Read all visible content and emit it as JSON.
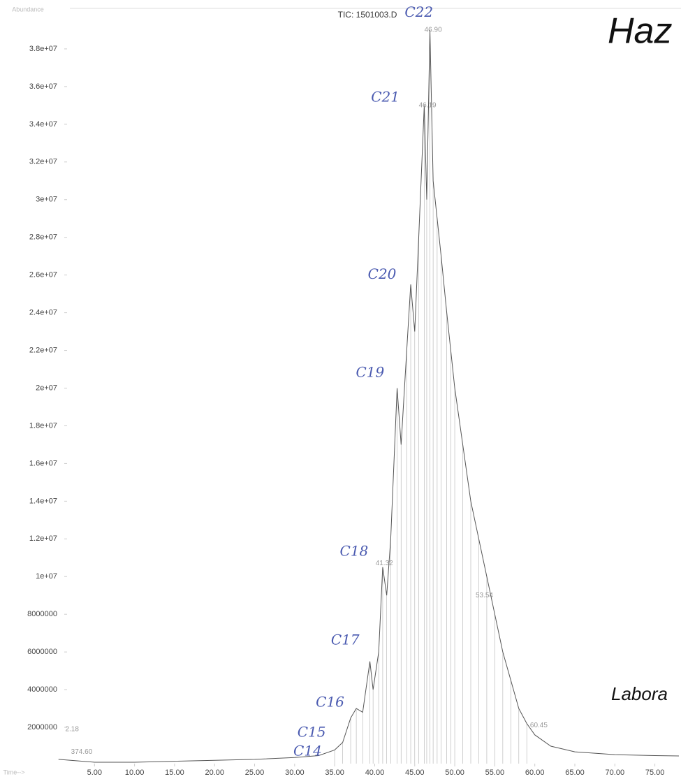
{
  "heading": "Haz",
  "footer_text": "Labora",
  "chart_data": {
    "type": "line",
    "title": "TIC: 1501003.D",
    "y_label": "Abundance",
    "x_label": "Time-->",
    "xlim": [
      0,
      78
    ],
    "ylim": [
      0,
      40000000
    ],
    "xticks": [
      {
        "value": 5,
        "label": "5.00"
      },
      {
        "value": 10,
        "label": "10.00"
      },
      {
        "value": 15,
        "label": "15.00"
      },
      {
        "value": 20,
        "label": "20.00"
      },
      {
        "value": 25,
        "label": "25.00"
      },
      {
        "value": 30,
        "label": "30.00"
      },
      {
        "value": 35,
        "label": "35.00"
      },
      {
        "value": 40,
        "label": "40.00"
      },
      {
        "value": 45,
        "label": "45.00"
      },
      {
        "value": 50,
        "label": "50.00"
      },
      {
        "value": 55,
        "label": "55.00"
      },
      {
        "value": 60,
        "label": "60.00"
      },
      {
        "value": 65,
        "label": "65.00"
      },
      {
        "value": 70,
        "label": "70.00"
      },
      {
        "value": 75,
        "label": "75.00"
      }
    ],
    "yticks": [
      2000000,
      4000000,
      6000000,
      8000000,
      {
        "value": 10000000,
        "label": "1e+07"
      },
      {
        "value": 12000000,
        "label": "1.2e+07"
      },
      {
        "value": 14000000,
        "label": "1.4e+07"
      },
      {
        "value": 16000000,
        "label": "1.6e+07"
      },
      {
        "value": 18000000,
        "label": "1.8e+07"
      },
      {
        "value": 20000000,
        "label": "2e+07"
      },
      {
        "value": 22000000,
        "label": "2.2e+07"
      },
      {
        "value": 24000000,
        "label": "2.4e+07"
      },
      {
        "value": 26000000,
        "label": "2.6e+07"
      },
      {
        "value": 28000000,
        "label": "2.8e+07"
      },
      {
        "value": 30000000,
        "label": "3e+07"
      },
      {
        "value": 32000000,
        "label": "3.2e+07"
      },
      {
        "value": 34000000,
        "label": "3.4e+07"
      },
      {
        "value": 36000000,
        "label": "3.6e+07"
      },
      {
        "value": 38000000,
        "label": "3.8e+07"
      }
    ],
    "series": [
      {
        "color": "#555555",
        "x": [
          0.5,
          5,
          10,
          15,
          20,
          25,
          30,
          33,
          35,
          36,
          37,
          37.7,
          38.5,
          39.4,
          39.8,
          40.5,
          41,
          41.5,
          42,
          42.8,
          43.3,
          44,
          44.5,
          45,
          45.5,
          46.19,
          46.5,
          46.9,
          47.3,
          47.8,
          48.3,
          49,
          49.5,
          50,
          51,
          52,
          53,
          54,
          55,
          56,
          57,
          58,
          59,
          60,
          62,
          65,
          70,
          75,
          78
        ],
        "values": [
          300000,
          150000,
          150000,
          200000,
          250000,
          300000,
          400000,
          500000,
          800000,
          1200000,
          2500000,
          3000000,
          2800000,
          5500000,
          4000000,
          6000000,
          10500000,
          9000000,
          12000000,
          20000000,
          17000000,
          22000000,
          25500000,
          23000000,
          28000000,
          35000000,
          30000000,
          39000000,
          31000000,
          29000000,
          27000000,
          24000000,
          22000000,
          20000000,
          17000000,
          14000000,
          12000000,
          10000000,
          8000000,
          6000000,
          4500000,
          3000000,
          2200000,
          1600000,
          1000000,
          700000,
          550000,
          500000,
          480000
        ]
      }
    ],
    "annotations": [
      {
        "text": "C22",
        "x": 47.3,
        "y": 39900000
      },
      {
        "text": "C21",
        "x": 43.1,
        "y": 35400000
      },
      {
        "text": "C20",
        "x": 42.7,
        "y": 26000000
      },
      {
        "text": "C19",
        "x": 41.2,
        "y": 20800000
      },
      {
        "text": "C18",
        "x": 39.2,
        "y": 11300000
      },
      {
        "text": "C17",
        "x": 38.1,
        "y": 6600000
      },
      {
        "text": "C16",
        "x": 36.2,
        "y": 3300000
      },
      {
        "text": "C15",
        "x": 33.9,
        "y": 1700000
      },
      {
        "text": "C14",
        "x": 33.4,
        "y": 700000
      }
    ],
    "peak_labels": [
      {
        "text": "46.90",
        "x": 47.3,
        "y": 39000000
      },
      {
        "text": "46.19",
        "x": 46.6,
        "y": 35000000
      },
      {
        "text": "41.32",
        "x": 41.2,
        "y": 10700000
      },
      {
        "text": "53.54",
        "x": 53.7,
        "y": 9000000
      },
      {
        "text": "60.45",
        "x": 60.5,
        "y": 2100000
      },
      {
        "text": "2.18",
        "x": 2.2,
        "y": 1900000
      },
      {
        "text": "374.60",
        "x": 3.4,
        "y": 700000
      }
    ]
  }
}
